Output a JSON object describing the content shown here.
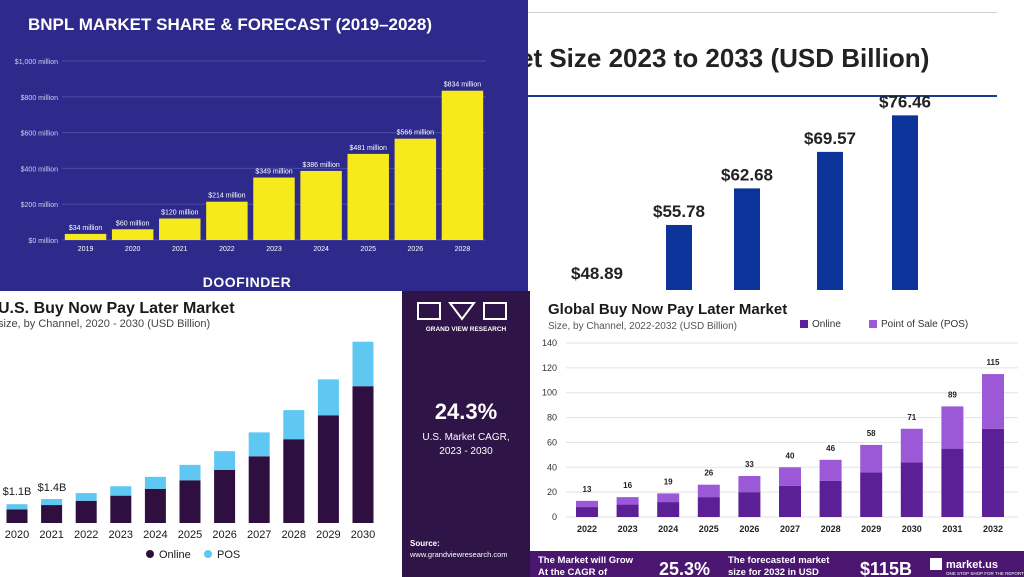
{
  "colors": {
    "p1_bg": "#2d2a8c",
    "p1_bar": "#f7ea1c",
    "p2_bar": "#0b3399",
    "p3_online": "#2e0f3f",
    "p3_pos": "#5ec8f2",
    "p3_side": "#2e1447",
    "p4_online": "#5b1f96",
    "p4_pos": "#9b59d8",
    "p4_banner": "#4a1670"
  },
  "chart_data": [
    {
      "type": "bar",
      "title": "BNPL MARKET SHARE & FORECAST (2019–2028)",
      "categories": [
        "2019",
        "2020",
        "2021",
        "2022",
        "2023",
        "2024",
        "2025",
        "2026",
        "2028"
      ],
      "values": [
        34,
        60,
        120,
        214,
        349,
        386,
        481,
        566,
        834
      ],
      "data_labels": [
        "$34 million",
        "$60 million",
        "$120 million",
        "$214 million",
        "$349 million",
        "$386 million",
        "$481 million",
        "$566 million",
        "$834 million"
      ],
      "yticks": [
        0,
        200,
        400,
        600,
        800,
        1000
      ],
      "ytick_labels": [
        "$0 million",
        "$200 million",
        "$400 million",
        "$600 million",
        "$800 million",
        "$1,000 million"
      ],
      "ylim": [
        0,
        1000
      ],
      "brand": "DOOFINDER"
    },
    {
      "type": "bar",
      "title": "et  Size 2023 to 2033 (USD Billion)",
      "values": [
        48.89,
        55.78,
        62.68,
        69.57,
        76.46
      ],
      "data_labels": [
        "$48.89",
        "$55.78",
        "$62.68",
        "$69.57",
        "$76.46"
      ]
    },
    {
      "type": "bar",
      "stacked": true,
      "title": "U.S. Buy Now Pay Later Market",
      "subtitle": "size, by Channel, 2020 - 2030 (USD Billion)",
      "categories": [
        "2020",
        "2021",
        "2022",
        "2023",
        "2024",
        "2025",
        "2026",
        "2027",
        "2028",
        "2029",
        "2030"
      ],
      "series": [
        {
          "name": "Online",
          "values": [
            0.8,
            1.05,
            1.3,
            1.6,
            2.0,
            2.5,
            3.1,
            3.9,
            4.9,
            6.3,
            8.0
          ]
        },
        {
          "name": "POS",
          "values": [
            0.3,
            0.35,
            0.45,
            0.55,
            0.7,
            0.9,
            1.1,
            1.4,
            1.7,
            2.1,
            2.6
          ]
        }
      ],
      "data_labels": [
        "$1.1B",
        "$1.4B"
      ],
      "brand": "GRAND VIEW RESEARCH",
      "cagr_value": "24.3%",
      "cagr_label_1": "U.S. Market CAGR,",
      "cagr_label_2": "2023 - 2030",
      "source_label": "Source:",
      "source_url": "www.grandviewresearch.com"
    },
    {
      "type": "bar",
      "stacked": true,
      "title": "Global Buy Now Pay Later Market",
      "subtitle": "Size, by Channel, 2022-2032 (USD Billion)",
      "categories": [
        "2022",
        "2023",
        "2024",
        "2025",
        "2026",
        "2027",
        "2028",
        "2029",
        "2030",
        "2031",
        "2032"
      ],
      "series": [
        {
          "name": "Online",
          "values": [
            8,
            10,
            12,
            16,
            20,
            25,
            29,
            36,
            44,
            55,
            71
          ]
        },
        {
          "name": "Point of Sale (POS)",
          "values": [
            5,
            6,
            7,
            10,
            13,
            15,
            17,
            22,
            27,
            34,
            44
          ]
        }
      ],
      "totals": [
        "13",
        "16",
        "19",
        "26",
        "33",
        "40",
        "46",
        "58",
        "71",
        "89",
        "115"
      ],
      "yticks": [
        0,
        20,
        40,
        60,
        80,
        100,
        120,
        140
      ],
      "ylim": [
        0,
        140
      ],
      "banner": {
        "text1_line1": "The Market will Grow",
        "text1_line2": "At the CAGR of",
        "cagr": "25.3%",
        "text2_line1": "The forecasted market",
        "text2_line2": "size for 2032 in USD",
        "size": "$115B",
        "brand": "market.us",
        "brand_tag": "ONE STOP SHOP FOR THE REPORTS"
      }
    }
  ]
}
